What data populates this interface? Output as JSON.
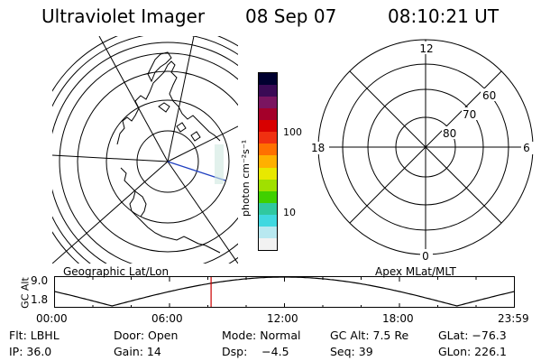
{
  "header": {
    "title": "Ultraviolet Imager",
    "date": "08 Sep 07",
    "time": "08:10:21 UT"
  },
  "panels": {
    "left_label": "Geographic Lat/Lon",
    "right_label": "Apex MLat/MLT"
  },
  "colorbar": {
    "label": "photon cm⁻²s⁻¹",
    "ticks": [
      "100",
      "10"
    ],
    "colors": [
      "#000030",
      "#3a0a55",
      "#7a1560",
      "#a4002a",
      "#d80000",
      "#f03010",
      "#ff7000",
      "#ffb000",
      "#e8e800",
      "#a0e000",
      "#40d000",
      "#30c8a0",
      "#40d8e0",
      "#b8e8f0",
      "#f2f2f2"
    ]
  },
  "polar": {
    "mlt_labels": {
      "top": "12",
      "left": "18",
      "right": "6",
      "bottom": "0"
    },
    "lat_labels": [
      "60",
      "70",
      "80"
    ]
  },
  "altitude_plot": {
    "ylabel": "GC Alt",
    "ymax_label": "9.0",
    "ymin_label": "1.8",
    "xticks": [
      "00:00",
      "06:00",
      "12:00",
      "18:00",
      "23:59"
    ],
    "current_time_hours": 8.17,
    "marker_color": "#cc0000"
  },
  "info": {
    "row1": {
      "flt": "Flt: LBHL",
      "door": "Door: Open",
      "mode": "Mode: Normal",
      "gcalt": "GC Alt: 7.5 Re",
      "glat": "GLat: −76.3"
    },
    "row2": {
      "ip": "IP: 36.0",
      "gain": "Gain: 14",
      "dsp": "Dsp:    −4.5",
      "seq": "Seq: 39",
      "glon": "GLon: 226.1"
    }
  }
}
